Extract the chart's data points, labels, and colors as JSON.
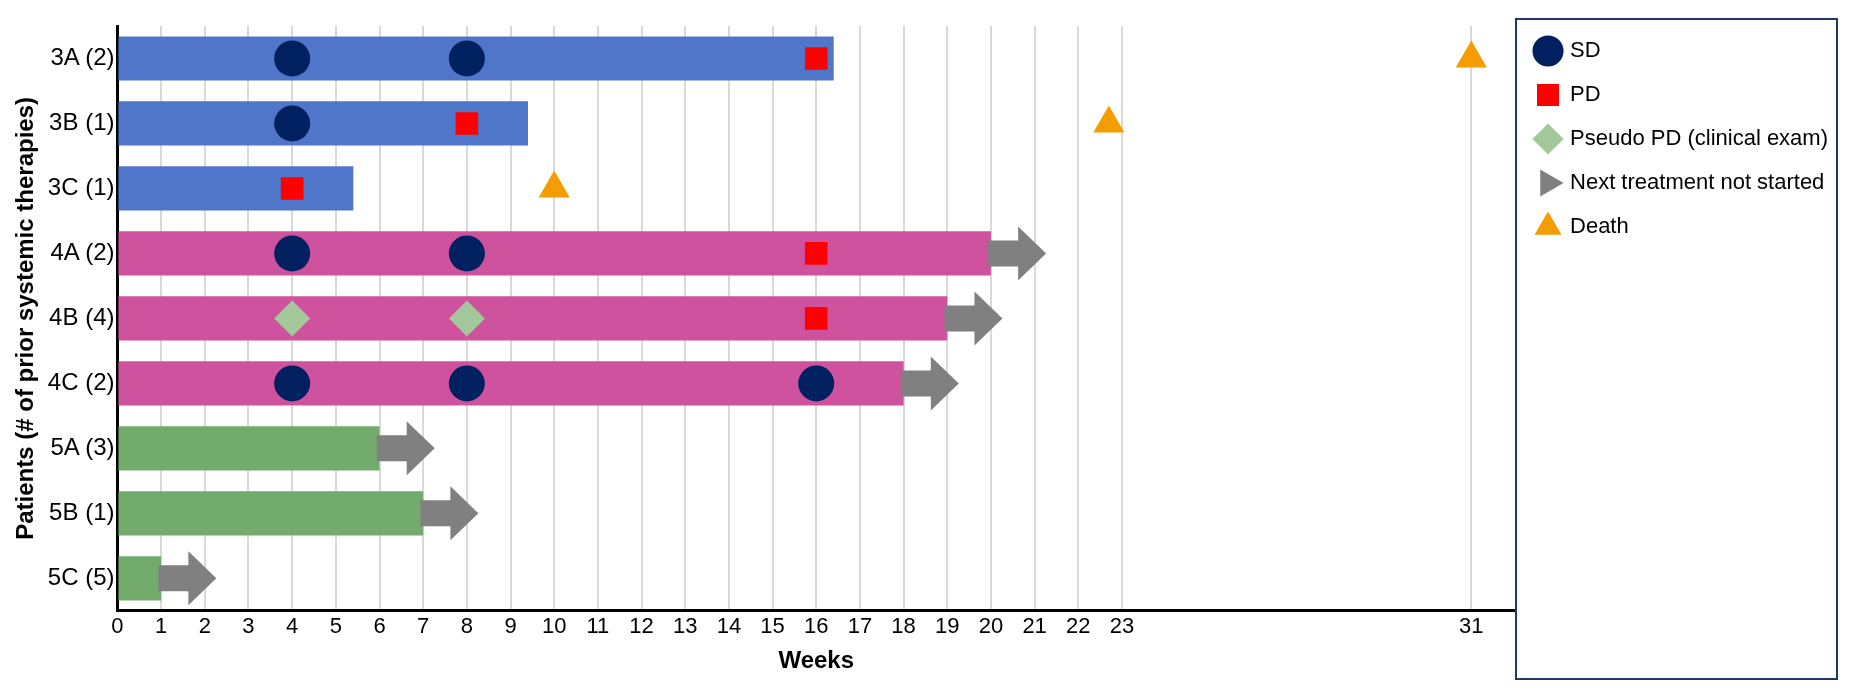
{
  "chart_data": {
    "type": "bar",
    "orientation": "horizontal",
    "xlabel": "Weeks",
    "ylabel": "Patients (# of prior systemic therapies)",
    "categories": [
      "3A (2)",
      "3B (1)",
      "3C (1)",
      "4A (2)",
      "4B (4)",
      "4C (2)",
      "5A (3)",
      "5B (1)",
      "5C (5)"
    ],
    "xlim": [
      0,
      32
    ],
    "xticks": [
      0,
      1,
      2,
      3,
      4,
      5,
      6,
      7,
      8,
      9,
      10,
      11,
      12,
      13,
      14,
      15,
      16,
      17,
      18,
      19,
      20,
      21,
      22,
      23,
      31
    ],
    "grid": "x",
    "legend": "right",
    "series": [
      {
        "colors": [
          "#4f76c9",
          "#4f76c9",
          "#4f76c9",
          "#cf529f",
          "#cf529f",
          "#cf529f",
          "#72ab6c",
          "#72ab6c",
          "#72ab6c"
        ],
        "values": [
          16.4,
          9.4,
          5.4,
          20,
          19,
          18,
          6,
          7,
          1
        ]
      },
      {
        "type": "scatter",
        "name": "SD",
        "color": "#002060",
        "marker": "circle",
        "x": [
          "3A (2)",
          "3A (2)",
          "3B (1)",
          "4A (2)",
          "4A (2)",
          "4C (2)",
          "4C (2)",
          "4C (2)"
        ],
        "values": [
          4,
          8,
          4,
          4,
          8,
          4,
          8,
          16
        ]
      },
      {
        "type": "scatter",
        "name": "PD",
        "color": "#ff0000",
        "marker": "square",
        "x": [
          "3A (2)",
          "3B (1)",
          "3C (1)",
          "4A (2)",
          "4B (4)"
        ],
        "values": [
          16,
          8,
          4,
          16,
          16
        ]
      },
      {
        "type": "scatter",
        "name": "Pseudo PD (clinical exam)",
        "color": "#a3c99b",
        "marker": "diamond",
        "x": [
          "4B (4)",
          "4B (4)"
        ],
        "values": [
          4,
          8
        ]
      },
      {
        "type": "scatter",
        "name": "Next treatment not started",
        "color": "#808080",
        "x": [
          "4A (2)",
          "4B (4)",
          "4C (2)",
          "5A (3)",
          "5B (1)",
          "5C (5)"
        ],
        "values": [
          20.6,
          19.6,
          18.6,
          6.6,
          7.6,
          1.6
        ]
      },
      {
        "type": "scatter",
        "name": "Death",
        "color": "#f59d00",
        "marker": "triangle",
        "x": [
          "3A (2)",
          "3B (1)",
          "3C (1)"
        ],
        "values": [
          31,
          22.7,
          10
        ]
      }
    ]
  }
}
